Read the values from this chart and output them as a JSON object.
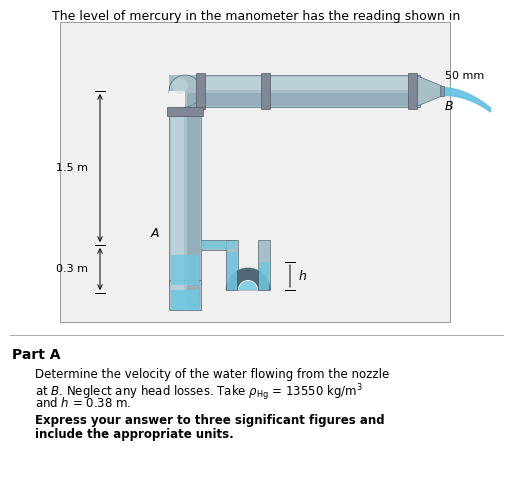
{
  "title_text": "The level of mercury in the manometer has the reading shown in",
  "part_label": "Part A",
  "desc_line1": "Determine the velocity of the water flowing from the nozzle",
  "desc_line2": "at $B$. Neglect any head losses. Take $\\rho_{\\mathrm{Hg}}$ = 13550 kg/m$^3$",
  "desc_line3": "and $h$ = 0.38 m.",
  "desc_line4": "Express your answer to three significant figures and",
  "desc_line5": "include the appropriate units.",
  "label_50mm": "50 mm",
  "label_B": "$B$",
  "label_1p5m": "1.5 m",
  "label_A": "$A$",
  "label_0p3m": "0.3 m",
  "label_h": "$h$",
  "bg_color": "#ffffff",
  "pipe_color": "#a8bfc8",
  "pipe_highlight": "#c8dce4",
  "pipe_shadow": "#7898a8",
  "pipe_dark": "#506878",
  "coupling_color": "#8898a0",
  "mercury_color": "#70c8e0",
  "water_color": "#60c0e0",
  "manometer_color": "#506878",
  "text_color": "#000000",
  "box_bg": "#f0f0f0"
}
